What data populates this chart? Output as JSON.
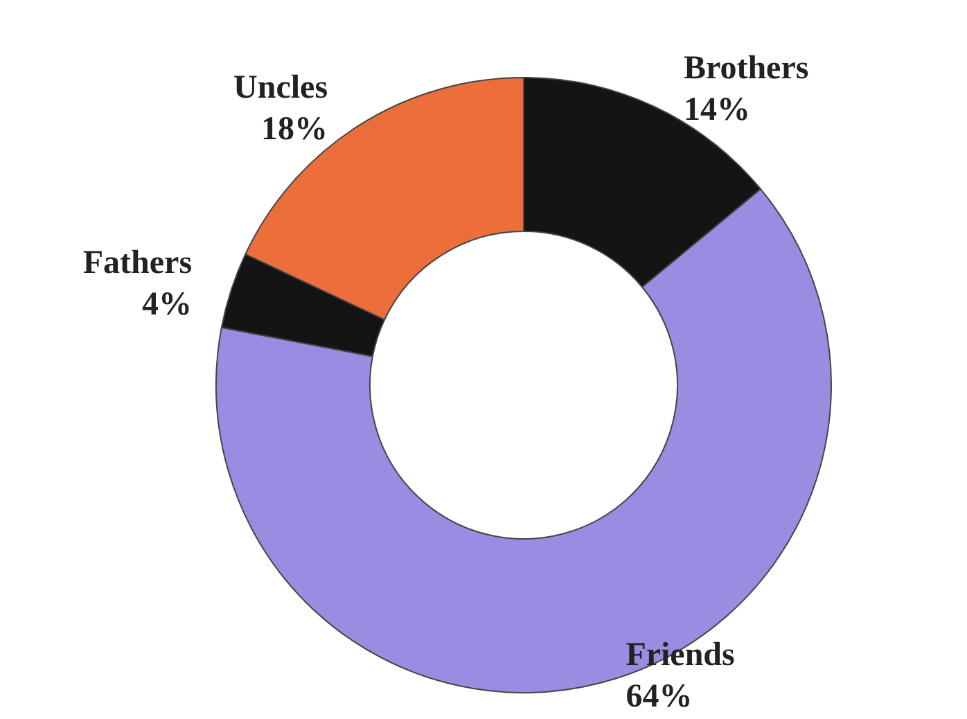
{
  "chart_data": {
    "type": "donut",
    "categories": [
      "Brothers",
      "Friends",
      "Fathers",
      "Uncles"
    ],
    "values": [
      14,
      64,
      4,
      18
    ],
    "value_labels": [
      "14%",
      "64%",
      "4%",
      "18%"
    ],
    "colors": [
      "#141414",
      "#9a8ce0",
      "#141414",
      "#ec6e3a"
    ],
    "legend": false
  }
}
